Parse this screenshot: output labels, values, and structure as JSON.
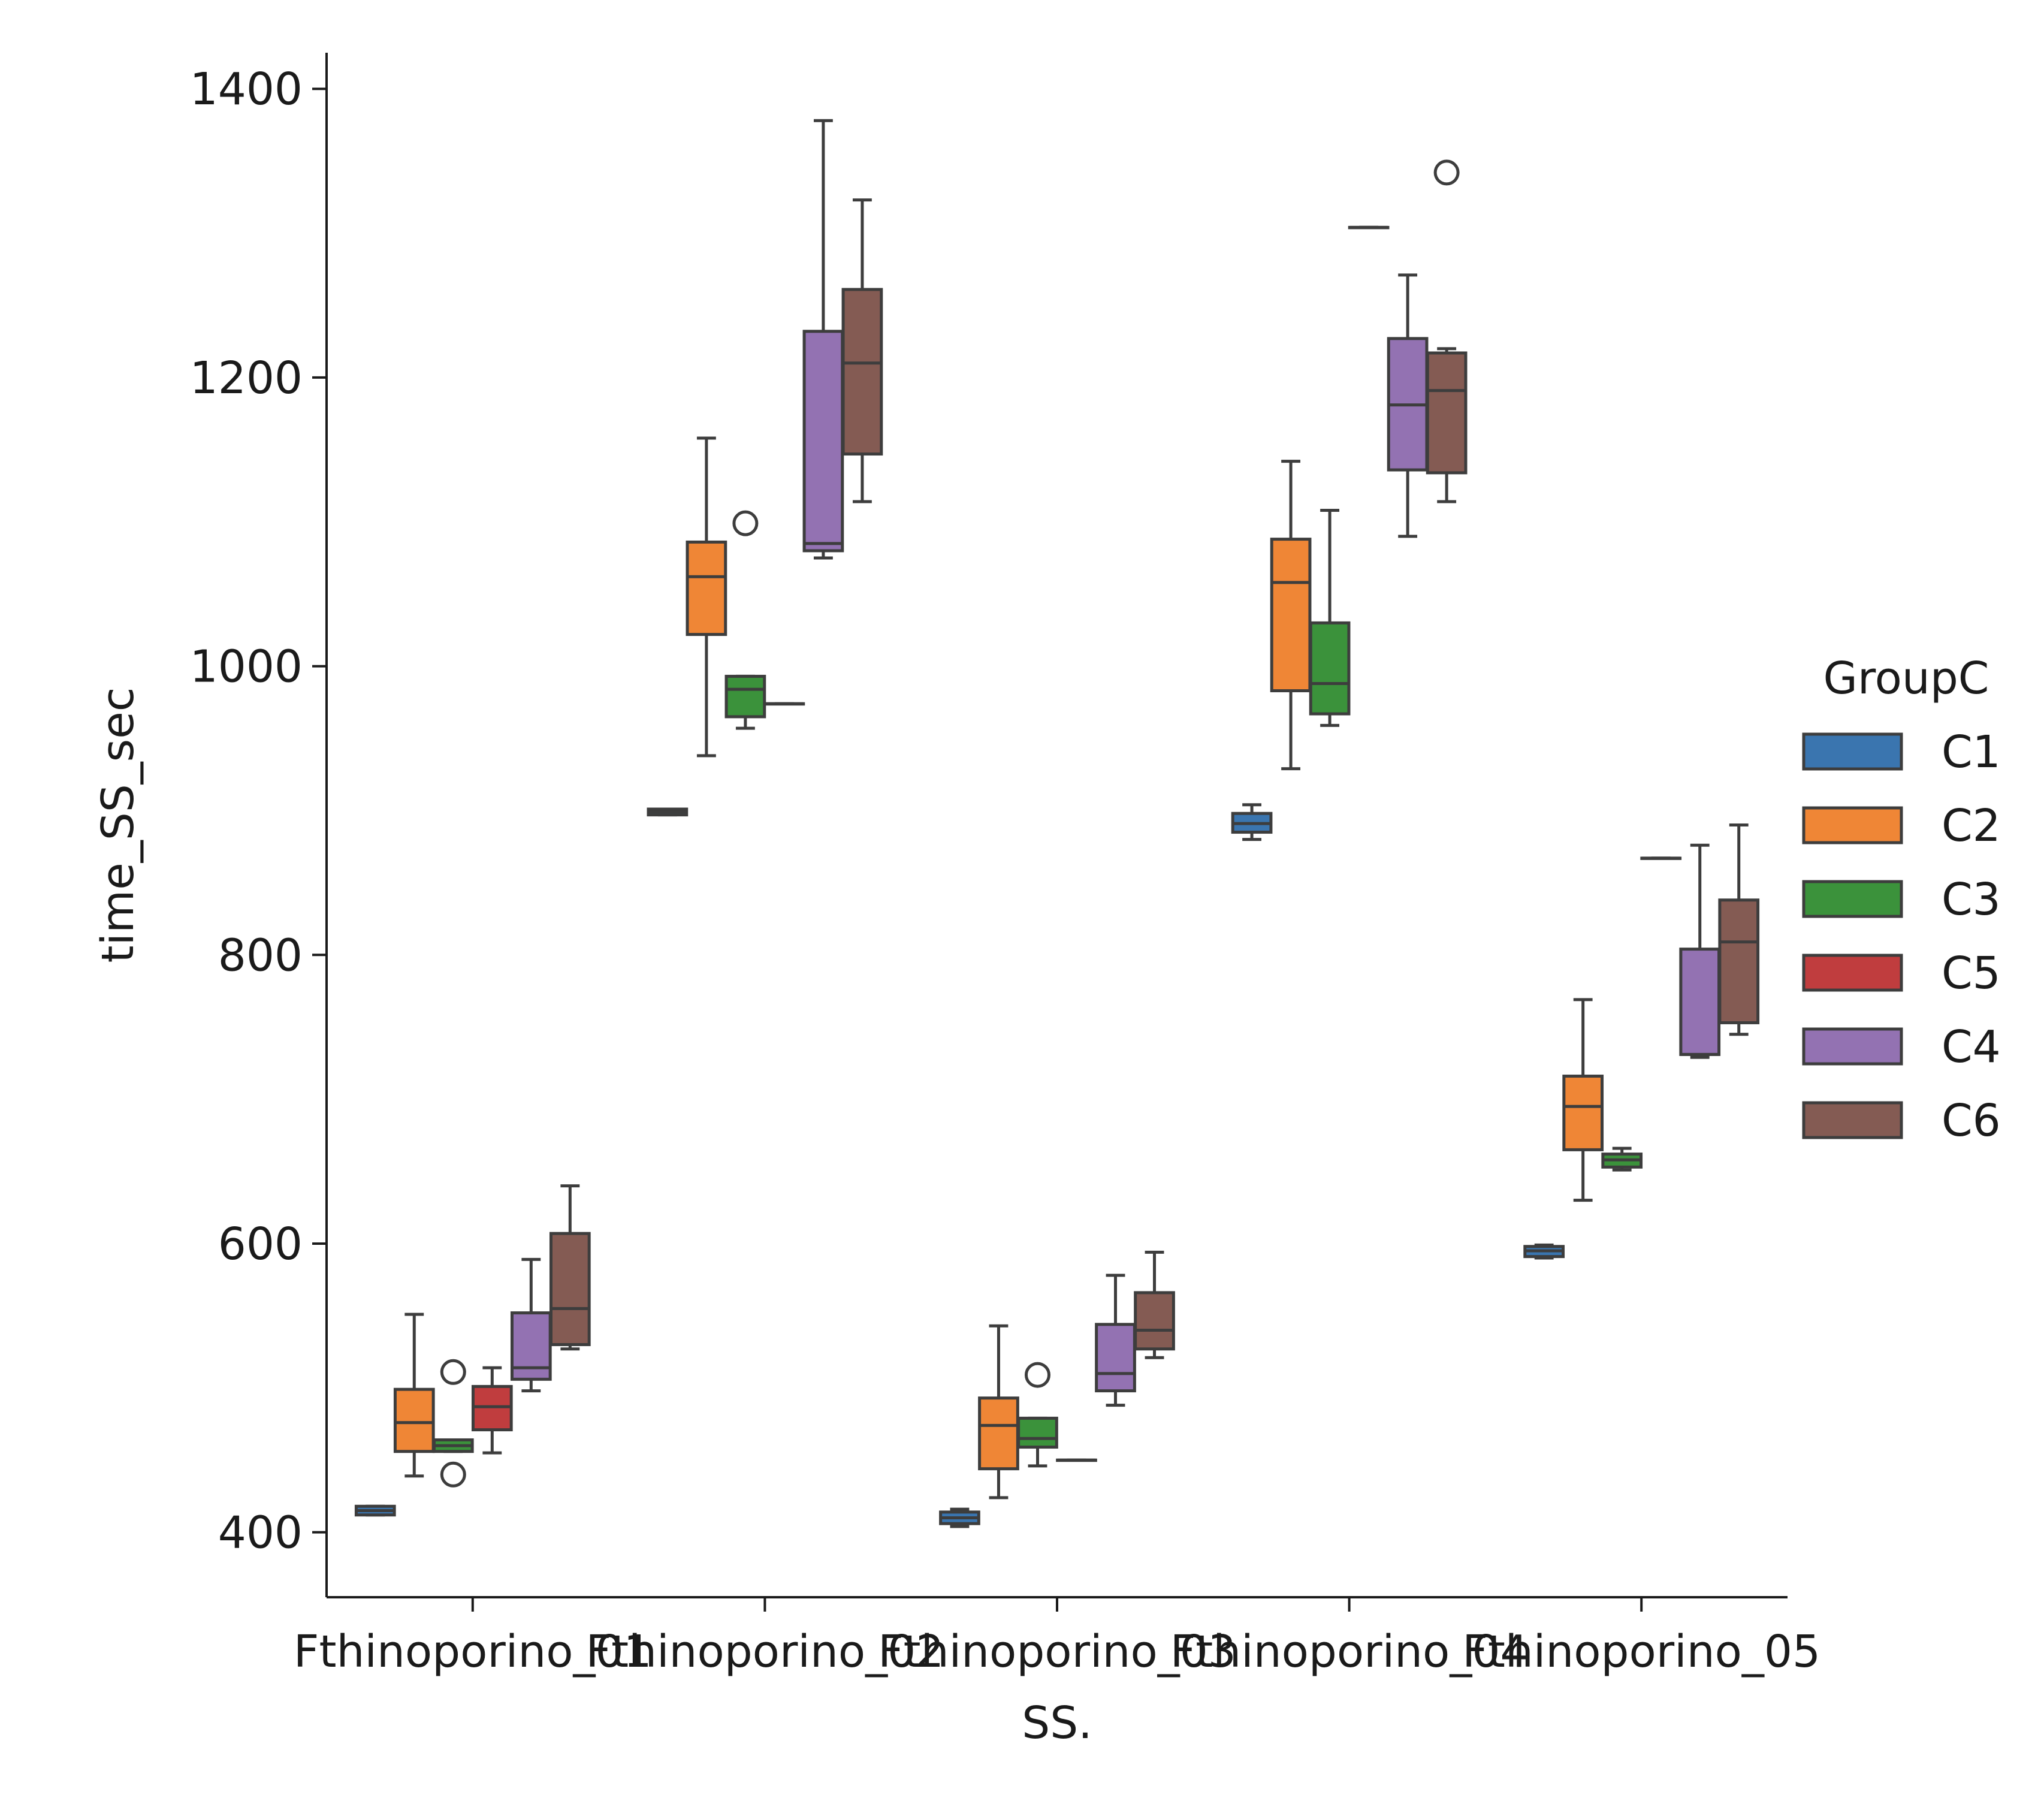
{
  "chart_data": {
    "type": "box",
    "xlabel": "SS.",
    "ylabel": "time_SS_sec",
    "ylim": [
      355,
      1425
    ],
    "yticks": [
      400,
      600,
      800,
      1000,
      1200,
      1400
    ],
    "categories": [
      "Fthinoporino_01",
      "Fthinoporino_02",
      "Fthinoporino_03",
      "Fthinoporino_04",
      "Fthinoporino_05"
    ],
    "legend": {
      "title": "GroupC",
      "position": "right"
    },
    "series": [
      {
        "name": "C1",
        "color": "#3a75af",
        "boxes": [
          {
            "q1": 412,
            "median": 415,
            "q3": 418,
            "whislo": 412,
            "whishi": 418,
            "fliers": []
          },
          {
            "q1": 897,
            "median": 899,
            "q3": 901,
            "whislo": 897,
            "whishi": 901,
            "fliers": []
          },
          {
            "q1": 406,
            "median": 410,
            "q3": 414,
            "whislo": 404,
            "whishi": 416,
            "fliers": []
          },
          {
            "q1": 885,
            "median": 891,
            "q3": 898,
            "whislo": 880,
            "whishi": 904,
            "fliers": []
          },
          {
            "q1": 591,
            "median": 595,
            "q3": 598,
            "whislo": 590,
            "whishi": 599,
            "fliers": []
          }
        ]
      },
      {
        "name": "C2",
        "color": "#ef8636",
        "boxes": [
          {
            "q1": 456,
            "median": 476,
            "q3": 499,
            "whislo": 439,
            "whishi": 551,
            "fliers": []
          },
          {
            "q1": 1022,
            "median": 1062,
            "q3": 1086,
            "whislo": 938,
            "whishi": 1158,
            "fliers": []
          },
          {
            "q1": 444,
            "median": 474,
            "q3": 493,
            "whislo": 424,
            "whishi": 543,
            "fliers": []
          },
          {
            "q1": 983,
            "median": 1058,
            "q3": 1088,
            "whislo": 929,
            "whishi": 1142,
            "fliers": []
          },
          {
            "q1": 665,
            "median": 695,
            "q3": 716,
            "whislo": 630,
            "whishi": 769,
            "fliers": []
          }
        ]
      },
      {
        "name": "C3",
        "color": "#3b923b",
        "boxes": [
          {
            "q1": 456,
            "median": 460,
            "q3": 464,
            "whislo": 456,
            "whishi": 464,
            "fliers": [
              440,
              511
            ]
          },
          {
            "q1": 965,
            "median": 984,
            "q3": 993,
            "whislo": 957,
            "whishi": 993,
            "fliers": [
              1099
            ]
          },
          {
            "q1": 459,
            "median": 465,
            "q3": 479,
            "whislo": 446,
            "whishi": 479,
            "fliers": [
              509
            ]
          },
          {
            "q1": 967,
            "median": 988,
            "q3": 1030,
            "whislo": 959,
            "whishi": 1108,
            "fliers": []
          },
          {
            "q1": 653,
            "median": 658,
            "q3": 662,
            "whislo": 651,
            "whishi": 666,
            "fliers": []
          }
        ]
      },
      {
        "name": "C5",
        "color": "#c03d3e",
        "boxes": [
          {
            "q1": 471,
            "median": 487,
            "q3": 501,
            "whislo": 455,
            "whishi": 514,
            "fliers": []
          },
          {
            "q1": 974,
            "median": 974,
            "q3": 974,
            "whislo": 974,
            "whishi": 974,
            "fliers": []
          },
          {
            "q1": 450,
            "median": 450,
            "q3": 450,
            "whislo": 450,
            "whishi": 450,
            "fliers": []
          },
          {
            "q1": 1304,
            "median": 1304,
            "q3": 1304,
            "whislo": 1304,
            "whishi": 1304,
            "fliers": []
          },
          {
            "q1": 867,
            "median": 867,
            "q3": 867,
            "whislo": 867,
            "whishi": 867,
            "fliers": []
          }
        ]
      },
      {
        "name": "C4",
        "color": "#9372b2",
        "boxes": [
          {
            "q1": 506,
            "median": 514,
            "q3": 552,
            "whislo": 498,
            "whishi": 589,
            "fliers": []
          },
          {
            "q1": 1080,
            "median": 1085,
            "q3": 1232,
            "whislo": 1075,
            "whishi": 1378,
            "fliers": []
          },
          {
            "q1": 498,
            "median": 510,
            "q3": 544,
            "whislo": 488,
            "whishi": 578,
            "fliers": []
          },
          {
            "q1": 1136,
            "median": 1181,
            "q3": 1227,
            "whislo": 1090,
            "whishi": 1271,
            "fliers": []
          },
          {
            "q1": 731,
            "median": 731,
            "q3": 804,
            "whislo": 729,
            "whishi": 876,
            "fliers": []
          }
        ]
      },
      {
        "name": "C6",
        "color": "#845b53",
        "boxes": [
          {
            "q1": 530,
            "median": 555,
            "q3": 607,
            "whislo": 527,
            "whishi": 640,
            "fliers": []
          },
          {
            "q1": 1147,
            "median": 1210,
            "q3": 1261,
            "whislo": 1114,
            "whishi": 1323,
            "fliers": []
          },
          {
            "q1": 527,
            "median": 540,
            "q3": 566,
            "whislo": 521,
            "whishi": 594,
            "fliers": []
          },
          {
            "q1": 1134,
            "median": 1191,
            "q3": 1217,
            "whislo": 1114,
            "whishi": 1220,
            "fliers": [
              1342
            ]
          },
          {
            "q1": 753,
            "median": 809,
            "q3": 838,
            "whislo": 745,
            "whishi": 890,
            "fliers": []
          }
        ]
      }
    ]
  }
}
